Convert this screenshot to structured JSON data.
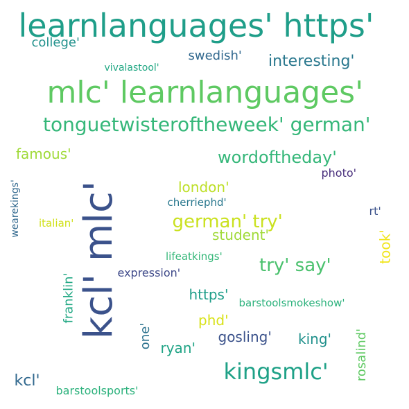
{
  "words": [
    {
      "id": "w01",
      "text": "learnlanguages' https'",
      "color": "#1f9e89"
    },
    {
      "id": "w02",
      "text": "mlc' learnlanguages'",
      "color": "#5ec962"
    },
    {
      "id": "w03",
      "text": "tonguetwisteroftheweek' german'",
      "color": "#35b779"
    },
    {
      "id": "w04",
      "text": "kcl' mlc'",
      "color": "#3b528b"
    },
    {
      "id": "w05",
      "text": "college'",
      "color": "#21918c"
    },
    {
      "id": "w06",
      "text": "swedish'",
      "color": "#31688e"
    },
    {
      "id": "w07",
      "text": "interesting'",
      "color": "#2a788e"
    },
    {
      "id": "w08",
      "text": "vivalastool'",
      "color": "#22a884"
    },
    {
      "id": "w09",
      "text": "famous'",
      "color": "#a0da39"
    },
    {
      "id": "w10",
      "text": "wordoftheday'",
      "color": "#35b779"
    },
    {
      "id": "w11",
      "text": "photo'",
      "color": "#472d7b"
    },
    {
      "id": "w12",
      "text": "wearekings'",
      "color": "#31688e"
    },
    {
      "id": "w13",
      "text": "london'",
      "color": "#bddf26"
    },
    {
      "id": "w14",
      "text": "cherriephd'",
      "color": "#2a788e"
    },
    {
      "id": "w15",
      "text": "rt'",
      "color": "#3b528b"
    },
    {
      "id": "w16",
      "text": "italian'",
      "color": "#d0e11c"
    },
    {
      "id": "w17",
      "text": "german' try'",
      "color": "#cae11f"
    },
    {
      "id": "w18",
      "text": "student'",
      "color": "#a0da39"
    },
    {
      "id": "w19",
      "text": "took'",
      "color": "#f1e51d"
    },
    {
      "id": "w20",
      "text": "lifeatkings'",
      "color": "#35b779"
    },
    {
      "id": "w21",
      "text": "try' say'",
      "color": "#4ac16d"
    },
    {
      "id": "w22",
      "text": "franklin'",
      "color": "#22a884"
    },
    {
      "id": "w23",
      "text": "expression'",
      "color": "#3e4989"
    },
    {
      "id": "w24",
      "text": "https'",
      "color": "#1f9e89"
    },
    {
      "id": "w25",
      "text": "barstoolsmokeshow'",
      "color": "#2db27d"
    },
    {
      "id": "w26",
      "text": "phd'",
      "color": "#d8e219"
    },
    {
      "id": "w27",
      "text": "one'",
      "color": "#2c728e"
    },
    {
      "id": "w28",
      "text": "gosling'",
      "color": "#3b528b"
    },
    {
      "id": "w29",
      "text": "king'",
      "color": "#21918c"
    },
    {
      "id": "w30",
      "text": "rosalind'",
      "color": "#5ec962"
    },
    {
      "id": "w31",
      "text": "ryan'",
      "color": "#20a486"
    },
    {
      "id": "w32",
      "text": "kingsmlc'",
      "color": "#1fa187"
    },
    {
      "id": "w33",
      "text": "kcl'",
      "color": "#31688e"
    },
    {
      "id": "w34",
      "text": "barstoolsports'",
      "color": "#2db27d"
    }
  ]
}
